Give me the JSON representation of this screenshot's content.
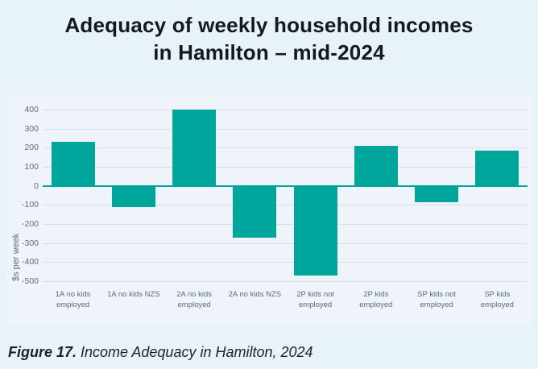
{
  "page": {
    "title_lines": [
      "Adequacy of weekly household incomes",
      "in Hamilton – mid-2024"
    ],
    "caption": {
      "prefix": "Figure 17.",
      "text": " Income Adequacy in Hamilton, 2024"
    }
  },
  "chart_data": {
    "type": "bar",
    "title": "Adequacy of weekly household incomes in Hamilton – mid-2024",
    "xlabel": "",
    "ylabel": "$s per week",
    "categories": [
      "1A no kids\nemployed",
      "1A no kids NZS",
      "2A no kids\nemployed",
      "2A no kids NZS",
      "2P kids not\nemployed",
      "2P kids\nemployed",
      "SP kids not\nemployed",
      "SP kids\nemployed"
    ],
    "values": [
      230,
      -110,
      400,
      -270,
      -470,
      210,
      -85,
      185
    ],
    "yticks": [
      400,
      300,
      200,
      100,
      0,
      -100,
      -200,
      -300,
      -400,
      -500
    ],
    "ylim": [
      -500,
      450
    ],
    "grid": true,
    "legend": false
  },
  "colors": {
    "page_bg": "#E8F3F7",
    "card_bg": "#EEF4FA",
    "bar": "#00A69C",
    "zero_line": "#00A69C",
    "gridline": "#D9DFE4",
    "tick_text": "#5F6B74",
    "title_text": "#14191d",
    "caption_text": "#1d2328"
  }
}
